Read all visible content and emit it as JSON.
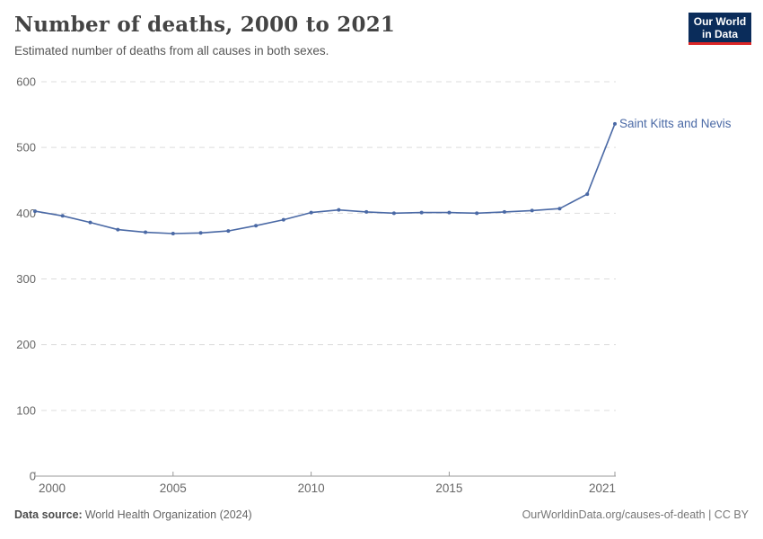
{
  "header": {
    "title": "Number of deaths, 2000 to 2021",
    "subtitle": "Estimated number of deaths from all causes in both sexes.",
    "logo": {
      "line1": "Our World",
      "line2": "in Data"
    }
  },
  "chart_data": {
    "type": "line",
    "title": "Number of deaths, 2000 to 2021",
    "xlabel": "",
    "ylabel": "",
    "x": [
      2000,
      2001,
      2002,
      2003,
      2004,
      2005,
      2006,
      2007,
      2008,
      2009,
      2010,
      2011,
      2012,
      2013,
      2014,
      2015,
      2016,
      2017,
      2018,
      2019,
      2020,
      2021
    ],
    "series": [
      {
        "name": "Saint Kitts and Nevis",
        "color": "#4A69A5",
        "values": [
          403,
          396,
          386,
          375,
          371,
          369,
          370,
          373,
          381,
          390,
          401,
          405,
          402,
          400,
          401,
          401,
          400,
          402,
          404,
          407,
          429,
          536
        ]
      }
    ],
    "ylim": [
      0,
      600
    ],
    "yticks": [
      0,
      100,
      200,
      300,
      400,
      500,
      600
    ],
    "xticks": [
      2000,
      2005,
      2010,
      2015,
      2021
    ],
    "grid": "horizontal-dashed",
    "legend_position": "end-of-line-label"
  },
  "footer": {
    "source_label": "Data source:",
    "source_text": "World Health Organization (2024)",
    "right_text": "OurWorldinData.org/causes-of-death | CC BY"
  },
  "colors": {
    "line": "#4A69A5",
    "grid": "#dddddd",
    "axis": "#999999",
    "tick_label": "#666666",
    "title": "#444444",
    "subtitle": "#555555",
    "logo_bg": "#0A2C5A",
    "logo_accent": "#DC2626"
  }
}
